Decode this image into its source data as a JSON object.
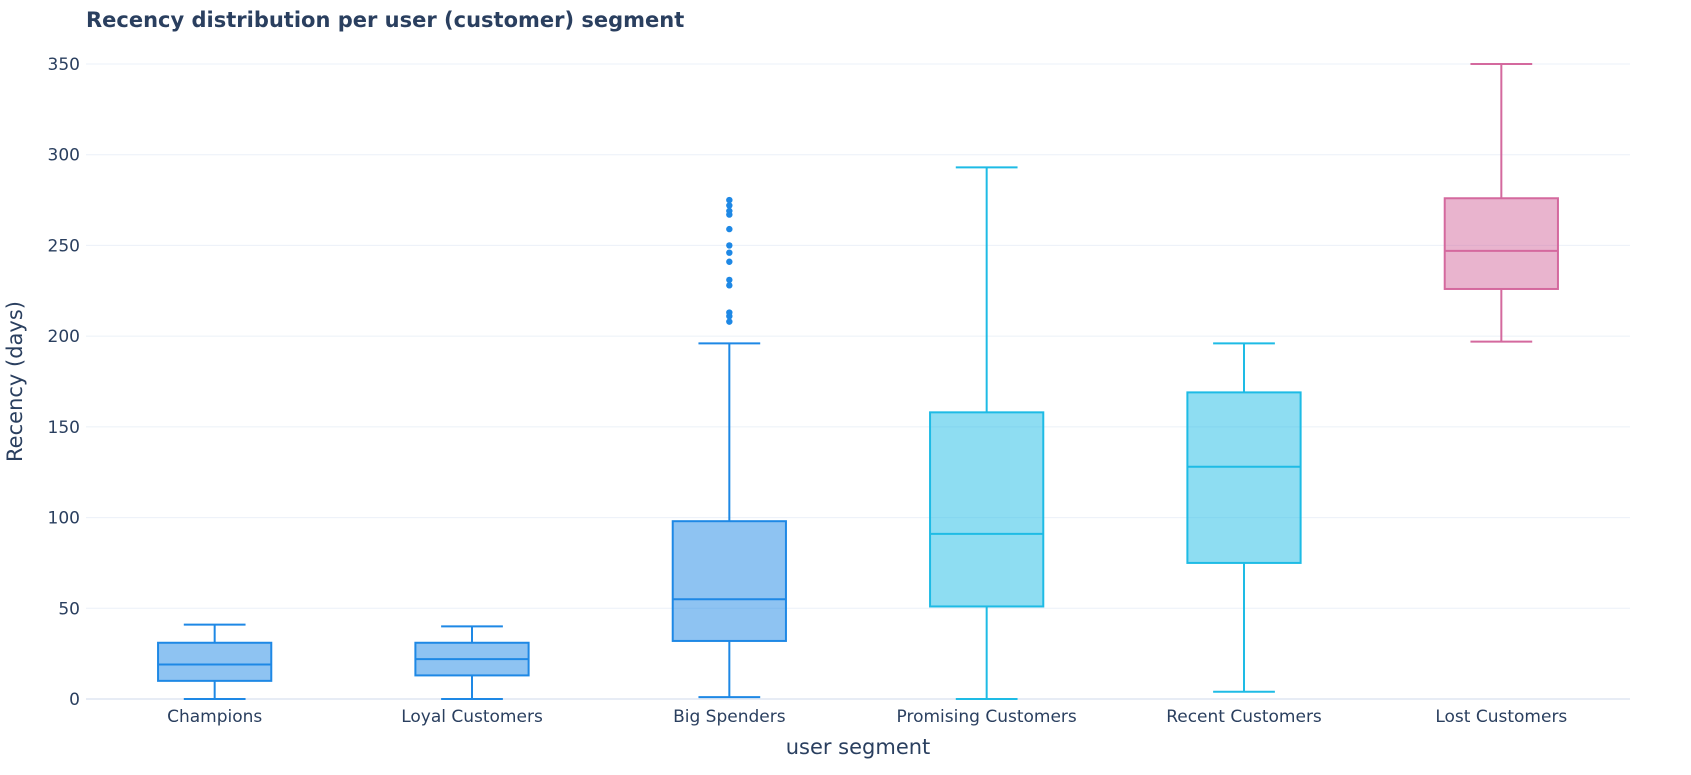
{
  "chart_data": {
    "type": "box",
    "title": "Recency distribution per user (customer) segment",
    "xlabel": "user segment",
    "ylabel": "Recency (days)",
    "ylim": [
      0,
      350
    ],
    "yticks": [
      0,
      50,
      100,
      150,
      200,
      250,
      300,
      350
    ],
    "grid": true,
    "categories": [
      "Champions",
      "Loyal Customers",
      "Big Spenders",
      "Promising Customers",
      "Recent Customers",
      "Lost Customers"
    ],
    "boxes": [
      {
        "category": "Champions",
        "min": 0,
        "q1": 10,
        "median": 19,
        "q3": 31,
        "max": 41,
        "outliers": [],
        "color": "#1e88e5"
      },
      {
        "category": "Loyal Customers",
        "min": 0,
        "q1": 13,
        "median": 22,
        "q3": 31,
        "max": 40,
        "outliers": [],
        "color": "#1e88e5"
      },
      {
        "category": "Big Spenders",
        "min": 1,
        "q1": 32,
        "median": 55,
        "q3": 98,
        "max": 196,
        "outliers": [
          208,
          211,
          213,
          228,
          231,
          241,
          246,
          250,
          259,
          267,
          269,
          272,
          275
        ],
        "color": "#1e88e5"
      },
      {
        "category": "Promising Customers",
        "min": 0,
        "q1": 51,
        "median": 91,
        "q3": 158,
        "max": 293,
        "outliers": [],
        "color": "#1ebbe5"
      },
      {
        "category": "Recent Customers",
        "min": 4,
        "q1": 75,
        "median": 128,
        "q3": 169,
        "max": 196,
        "outliers": [],
        "color": "#1ebbe5"
      },
      {
        "category": "Lost Customers",
        "min": 197,
        "q1": 226,
        "median": 247,
        "q3": 276,
        "max": 350,
        "outliers": [],
        "color": "#d4699e"
      }
    ]
  }
}
